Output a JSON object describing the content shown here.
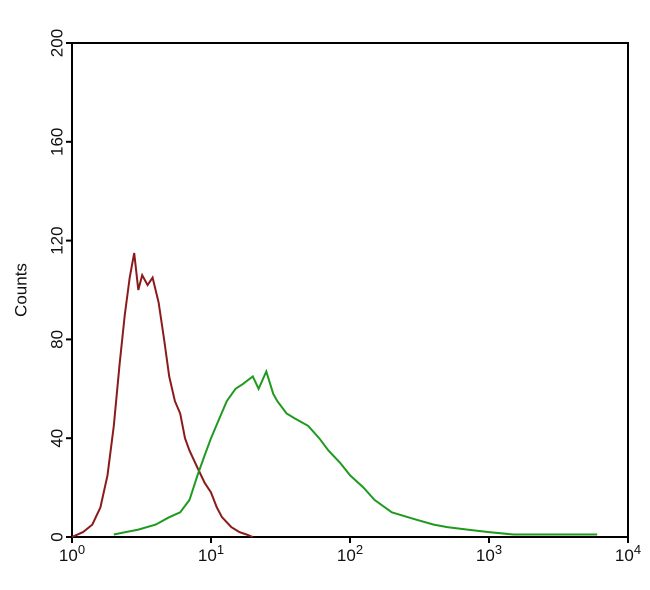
{
  "chart_data": {
    "type": "line",
    "y_label": "Counts",
    "xlog": true,
    "xlim": [
      1,
      10000
    ],
    "ylim": [
      0,
      200
    ],
    "xticks": [
      {
        "value": 1,
        "label": "10",
        "exponent": "0"
      },
      {
        "value": 10,
        "label": "10",
        "exponent": "1"
      },
      {
        "value": 100,
        "label": "10",
        "exponent": "2"
      },
      {
        "value": 1000,
        "label": "10",
        "exponent": "3"
      },
      {
        "value": 10000,
        "label": "10",
        "exponent": "4"
      }
    ],
    "yticks": [
      0,
      40,
      80,
      120,
      160,
      200
    ],
    "series": [
      {
        "color": "#8b1a1a",
        "x": [
          1.0,
          1.2,
          1.4,
          1.6,
          1.8,
          2.0,
          2.2,
          2.4,
          2.6,
          2.8,
          3.0,
          3.2,
          3.5,
          3.8,
          4.2,
          4.6,
          5.0,
          5.5,
          6.0,
          6.5,
          7.0,
          8.0,
          9.0,
          10,
          11,
          12,
          14,
          16,
          18,
          20
        ],
        "values": [
          0,
          2,
          5,
          12,
          25,
          45,
          70,
          90,
          105,
          115,
          100,
          106,
          102,
          105,
          95,
          80,
          65,
          55,
          50,
          40,
          35,
          28,
          22,
          18,
          12,
          8,
          4,
          2,
          1,
          0
        ]
      },
      {
        "color": "#1f9a1f",
        "x": [
          2,
          3,
          4,
          5,
          6,
          7,
          8,
          9,
          10,
          11.5,
          13,
          15,
          17,
          20,
          22,
          25,
          28,
          30,
          35,
          40,
          50,
          60,
          70,
          85,
          100,
          125,
          150,
          200,
          300,
          400,
          500,
          700,
          1000,
          1500,
          2000,
          3000,
          4000,
          6000
        ],
        "values": [
          1,
          3,
          5,
          8,
          10,
          15,
          25,
          33,
          40,
          48,
          55,
          60,
          62,
          65,
          60,
          67,
          58,
          55,
          50,
          48,
          45,
          40,
          35,
          30,
          25,
          20,
          15,
          10,
          7,
          5,
          4,
          3,
          2,
          1,
          1,
          1,
          1,
          1
        ]
      }
    ]
  }
}
